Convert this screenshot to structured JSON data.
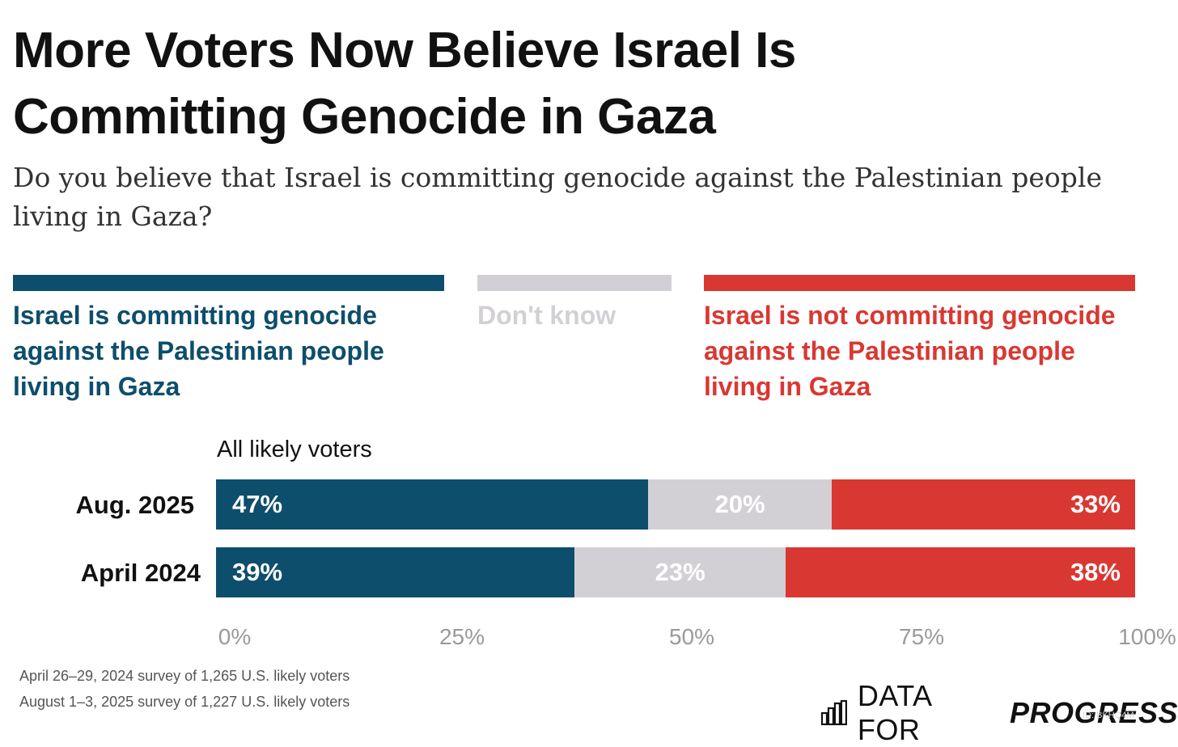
{
  "title": "More Voters Now Believe Israel Is Committing Genocide in Gaza",
  "subtitle": "Do you believe that Israel is committing genocide against the Palestinian people living in Gaza?",
  "chart_data": {
    "type": "bar",
    "orientation": "horizontal",
    "stacked": true,
    "group_label": "All likely voters",
    "categories": [
      "Aug. 2025",
      "April 2024"
    ],
    "series": [
      {
        "name": "Israel is committing genocide against the Palestinian people living in Gaza",
        "color": "#0d4e6c",
        "values": [
          47,
          39
        ]
      },
      {
        "name": "Don't know",
        "color": "#d3d0d5",
        "values": [
          20,
          23
        ]
      },
      {
        "name": "Israel is not committing genocide against the Palestinian people living in Gaza",
        "color": "#d93832",
        "values": [
          33,
          38
        ]
      }
    ],
    "value_labels": [
      [
        "47%",
        "20%",
        "33%"
      ],
      [
        "39%",
        "23%",
        "38%"
      ]
    ],
    "xlim": [
      0,
      100
    ],
    "xticks": [
      0,
      25,
      50,
      75,
      100
    ],
    "xtick_labels": [
      "0%",
      "25%",
      "50%",
      "75%",
      "100%"
    ],
    "legend_position": "top"
  },
  "notes": [
    "April 26–29, 2024 survey of 1,265 U.S. likely voters",
    "August 1–3, 2025 survey of 1,227 U.S. likely voters"
  ],
  "logo": {
    "text_regular": "DATA FOR",
    "text_bold": "PROGRESS",
    "icon": "bar-chart-icon"
  },
  "watermark": "ID: BKHQ4M"
}
